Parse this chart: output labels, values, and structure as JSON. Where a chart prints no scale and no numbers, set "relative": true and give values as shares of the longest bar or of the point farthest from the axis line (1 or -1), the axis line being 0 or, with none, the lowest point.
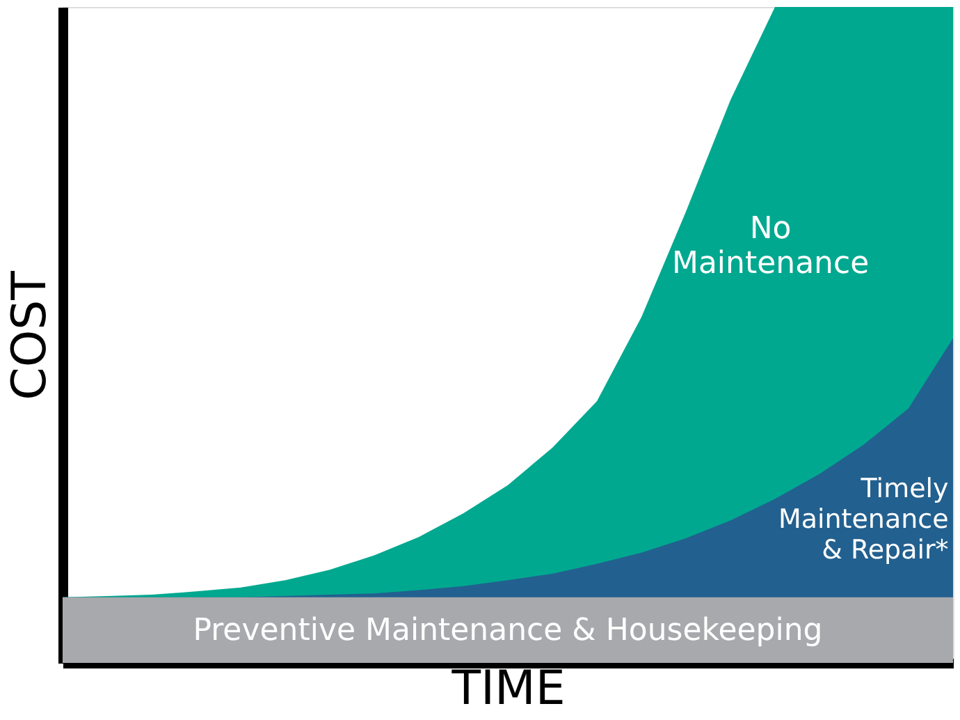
{
  "chart_data": {
    "type": "area",
    "relative": true,
    "xlabel": "TIME",
    "ylabel": "COST",
    "legend": false,
    "grid": false,
    "tick_labels": false,
    "categories": [
      null,
      null,
      null,
      null,
      null,
      null,
      null,
      null,
      null,
      null,
      null,
      null,
      null,
      null,
      null,
      null,
      null,
      null,
      null,
      null,
      null
    ],
    "series": [
      {
        "name": "No\nMaintenance",
        "color": "#00a88f",
        "values": [
          0.1,
          0.102,
          0.104,
          0.109,
          0.115,
          0.126,
          0.142,
          0.164,
          0.192,
          0.228,
          0.271,
          0.328,
          0.399,
          0.527,
          0.688,
          0.858,
          1,
          1,
          1,
          1,
          1
        ]
      },
      {
        "name": "Timely\nMaintenance\n& Repair*",
        "color": "#22608f",
        "values": [
          0.1,
          0.1,
          0.1,
          0.1,
          0.1,
          0.102,
          0.104,
          0.106,
          0.111,
          0.117,
          0.126,
          0.136,
          0.151,
          0.168,
          0.19,
          0.217,
          0.25,
          0.288,
          0.333,
          0.388,
          0.495
        ]
      },
      {
        "name": "Preventive Maintenance & Housekeeping",
        "color": "#a7a9ac",
        "values": [
          0.1,
          0.1,
          0.1,
          0.1,
          0.1,
          0.1,
          0.1,
          0.1,
          0.1,
          0.1,
          0.1,
          0.1,
          0.1,
          0.1,
          0.1,
          0.1,
          0.1,
          0.1,
          0.1,
          0.1,
          0.1
        ]
      }
    ]
  }
}
